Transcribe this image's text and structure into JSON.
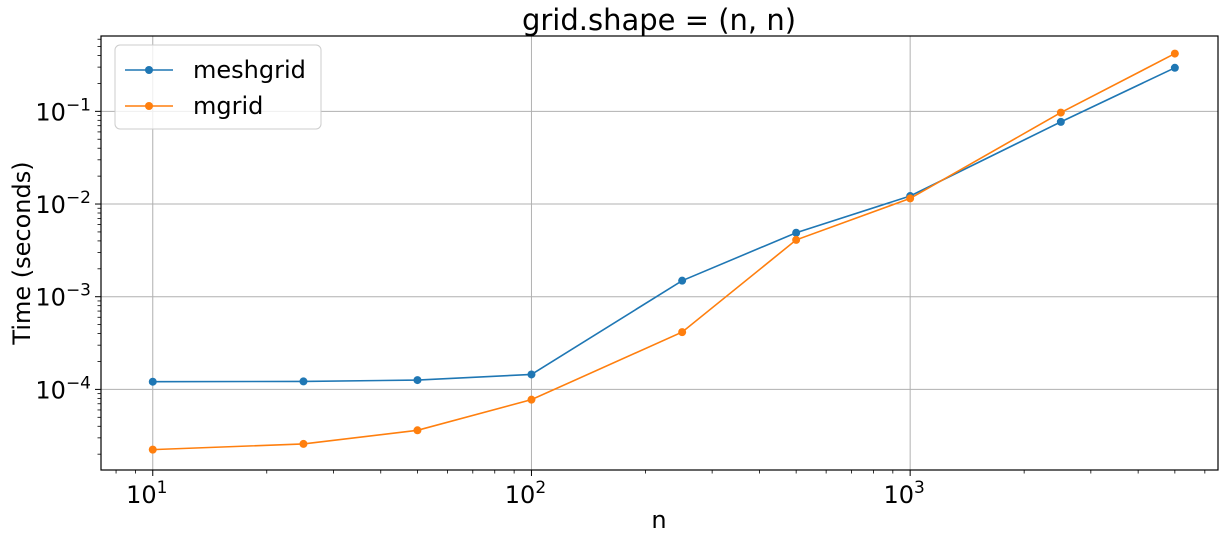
{
  "chart_data": {
    "type": "line",
    "title": "grid.shape = (n, n)",
    "xlabel": "n",
    "ylabel": "Time (seconds)",
    "xscale": "log",
    "yscale": "log",
    "xlim": [
      7.3,
      6500
    ],
    "ylim": [
      1.35e-05,
      0.65
    ],
    "grid": true,
    "legend_position": "top-left",
    "x_ticks": [
      {
        "value": 10,
        "base": "10",
        "exp": "1"
      },
      {
        "value": 100,
        "base": "10",
        "exp": "2"
      },
      {
        "value": 1000,
        "base": "10",
        "exp": "3"
      }
    ],
    "y_ticks": [
      {
        "value": 0.0001,
        "base": "10",
        "exp": "−4"
      },
      {
        "value": 0.001,
        "base": "10",
        "exp": "−3"
      },
      {
        "value": 0.01,
        "base": "10",
        "exp": "−2"
      },
      {
        "value": 0.1,
        "base": "10",
        "exp": "−1"
      }
    ],
    "x": [
      10,
      25,
      50,
      100,
      250,
      500,
      1000,
      2500,
      5000
    ],
    "series": [
      {
        "name": "meshgrid",
        "color": "#1f77b4",
        "values": [
          0.000121,
          0.000122,
          0.000126,
          0.000145,
          0.00149,
          0.0049,
          0.0122,
          0.077,
          0.295
        ]
      },
      {
        "name": "mgrid",
        "color": "#ff7f0e",
        "values": [
          2.24e-05,
          2.58e-05,
          3.62e-05,
          7.75e-05,
          0.000415,
          0.0041,
          0.0115,
          0.097,
          0.42
        ]
      }
    ]
  }
}
